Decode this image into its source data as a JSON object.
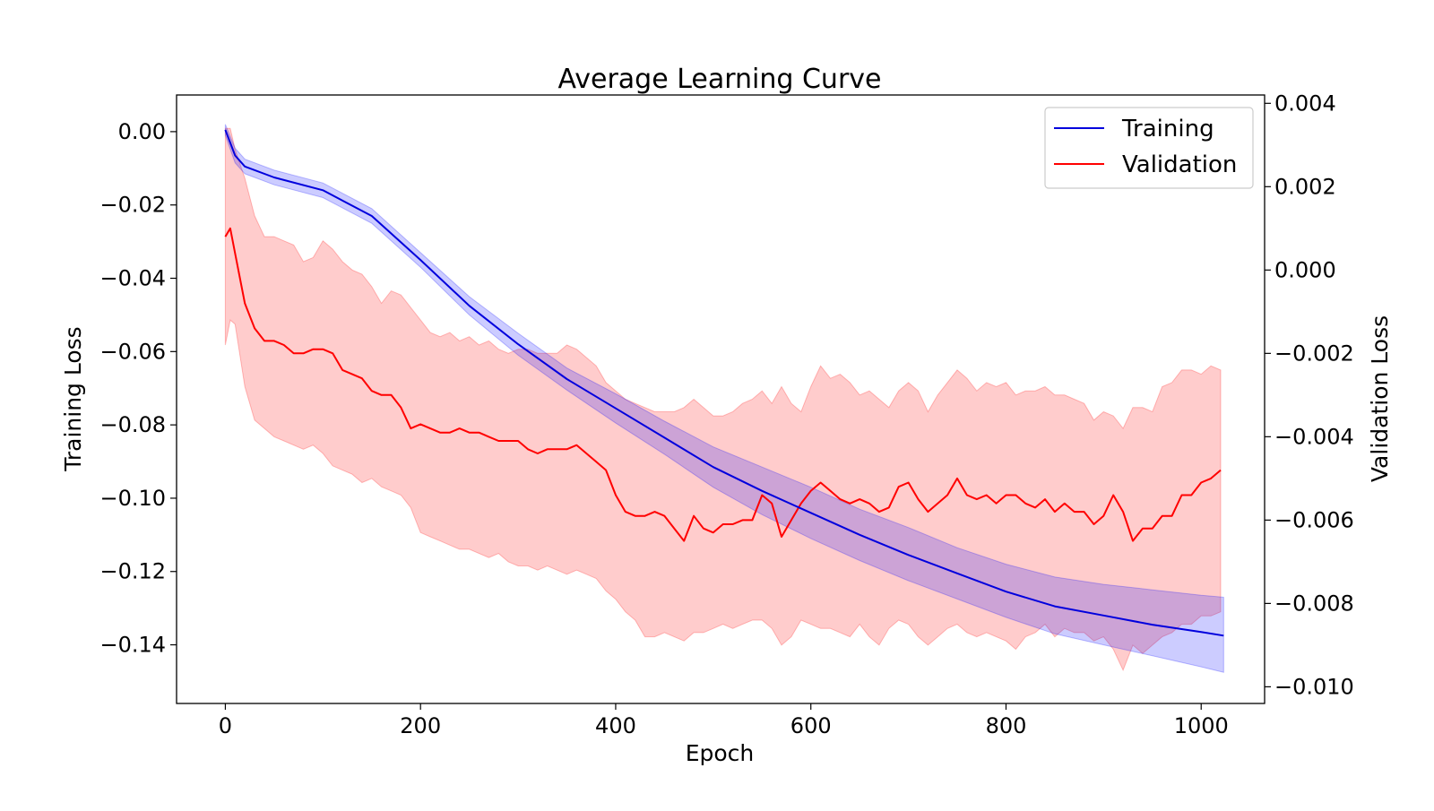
{
  "chart_data": {
    "type": "line",
    "title": "Average Learning Curve",
    "xlabel": "Epoch",
    "ylabel_left": "Training Loss",
    "ylabel_right": "Validation Loss",
    "xlim": [
      -50,
      1065
    ],
    "ylim_left": [
      -0.156,
      0.01
    ],
    "ylim_right": [
      -0.0104,
      0.0042
    ],
    "x_ticks": [
      0,
      200,
      400,
      600,
      800,
      1000
    ],
    "x_tick_labels": [
      "0",
      "200",
      "400",
      "600",
      "800",
      "1000"
    ],
    "y_left_ticks": [
      0.0,
      -0.02,
      -0.04,
      -0.06,
      -0.08,
      -0.1,
      -0.12,
      -0.14
    ],
    "y_left_tick_labels": [
      "0.00",
      "−0.02",
      "−0.04",
      "−0.06",
      "−0.08",
      "−0.10",
      "−0.12",
      "−0.14"
    ],
    "y_right_ticks": [
      0.004,
      0.002,
      0.0,
      -0.002,
      -0.004,
      -0.006,
      -0.008,
      -0.01
    ],
    "y_right_tick_labels": [
      "0.004",
      "0.002",
      "0.000",
      "−0.002",
      "−0.004",
      "−0.006",
      "−0.008",
      "−0.010"
    ],
    "grid": false,
    "legend": {
      "placement": "top-right",
      "entries": [
        "Training",
        "Validation"
      ]
    },
    "series": [
      {
        "name": "Training",
        "axis": "left",
        "color": "#0000dd",
        "band_color": "#0000ff",
        "x": [
          0,
          10,
          20,
          50,
          100,
          150,
          200,
          250,
          300,
          350,
          400,
          450,
          500,
          550,
          600,
          650,
          700,
          750,
          800,
          850,
          900,
          950,
          1000,
          1023
        ],
        "mean": [
          0.0005,
          -0.0065,
          -0.0095,
          -0.0125,
          -0.016,
          -0.023,
          -0.035,
          -0.0475,
          -0.058,
          -0.0675,
          -0.0755,
          -0.0835,
          -0.0915,
          -0.098,
          -0.104,
          -0.11,
          -0.1155,
          -0.1205,
          -0.1255,
          -0.1295,
          -0.132,
          -0.1345,
          -0.1365,
          -0.1375
        ],
        "lower": [
          -0.001,
          -0.0085,
          -0.0115,
          -0.0145,
          -0.018,
          -0.025,
          -0.037,
          -0.05,
          -0.061,
          -0.0705,
          -0.0795,
          -0.088,
          -0.097,
          -0.1045,
          -0.111,
          -0.117,
          -0.1225,
          -0.1275,
          -0.1325,
          -0.137,
          -0.14,
          -0.143,
          -0.146,
          -0.1475
        ],
        "upper": [
          0.002,
          -0.0045,
          -0.0075,
          -0.0105,
          -0.014,
          -0.021,
          -0.033,
          -0.045,
          -0.055,
          -0.0645,
          -0.0715,
          -0.079,
          -0.086,
          -0.0915,
          -0.097,
          -0.103,
          -0.108,
          -0.1135,
          -0.118,
          -0.1215,
          -0.1235,
          -0.125,
          -0.1265,
          -0.127
        ]
      },
      {
        "name": "Validation",
        "axis": "right",
        "color": "#ff0000",
        "band_color": "#ff0000",
        "x": [
          0,
          5,
          10,
          20,
          30,
          40,
          50,
          60,
          70,
          80,
          90,
          100,
          110,
          120,
          130,
          140,
          150,
          160,
          170,
          180,
          190,
          200,
          210,
          220,
          230,
          240,
          250,
          260,
          270,
          280,
          290,
          300,
          310,
          320,
          330,
          340,
          350,
          360,
          370,
          380,
          390,
          400,
          410,
          420,
          430,
          440,
          450,
          460,
          470,
          480,
          490,
          500,
          510,
          520,
          530,
          540,
          550,
          560,
          570,
          580,
          590,
          600,
          610,
          620,
          630,
          640,
          650,
          660,
          670,
          680,
          690,
          700,
          710,
          720,
          730,
          740,
          750,
          760,
          770,
          780,
          790,
          800,
          810,
          820,
          830,
          840,
          850,
          860,
          870,
          880,
          890,
          900,
          910,
          920,
          930,
          940,
          950,
          960,
          970,
          980,
          990,
          1000,
          1010,
          1020
        ],
        "mean": [
          0.0008,
          0.001,
          0.0004,
          -0.0008,
          -0.0014,
          -0.0017,
          -0.0017,
          -0.0018,
          -0.002,
          -0.002,
          -0.0019,
          -0.0019,
          -0.002,
          -0.0024,
          -0.0025,
          -0.0026,
          -0.0029,
          -0.003,
          -0.003,
          -0.0033,
          -0.0038,
          -0.0037,
          -0.0038,
          -0.0039,
          -0.0039,
          -0.0038,
          -0.0039,
          -0.0039,
          -0.004,
          -0.0041,
          -0.0041,
          -0.0041,
          -0.0043,
          -0.0044,
          -0.0043,
          -0.0043,
          -0.0043,
          -0.0042,
          -0.0044,
          -0.0046,
          -0.0048,
          -0.0054,
          -0.0058,
          -0.0059,
          -0.0059,
          -0.0058,
          -0.0059,
          -0.0062,
          -0.0065,
          -0.0059,
          -0.0062,
          -0.0063,
          -0.0061,
          -0.0061,
          -0.006,
          -0.006,
          -0.0054,
          -0.0056,
          -0.0064,
          -0.006,
          -0.0056,
          -0.0053,
          -0.0051,
          -0.0053,
          -0.0055,
          -0.0056,
          -0.0055,
          -0.0056,
          -0.0058,
          -0.0057,
          -0.0052,
          -0.0051,
          -0.0055,
          -0.0058,
          -0.0056,
          -0.0054,
          -0.005,
          -0.0054,
          -0.0055,
          -0.0054,
          -0.0056,
          -0.0054,
          -0.0054,
          -0.0056,
          -0.0057,
          -0.0055,
          -0.0058,
          -0.0056,
          -0.0058,
          -0.0058,
          -0.0061,
          -0.0059,
          -0.0054,
          -0.0058,
          -0.0065,
          -0.0062,
          -0.0062,
          -0.0059,
          -0.0059,
          -0.0054,
          -0.0054,
          -0.0051,
          -0.005,
          -0.0048
        ],
        "lower": [
          -0.0018,
          -0.0012,
          -0.0013,
          -0.0028,
          -0.0036,
          -0.0038,
          -0.004,
          -0.0041,
          -0.0042,
          -0.0043,
          -0.0042,
          -0.0044,
          -0.0047,
          -0.0048,
          -0.0049,
          -0.0051,
          -0.005,
          -0.0052,
          -0.0053,
          -0.0054,
          -0.0057,
          -0.0063,
          -0.0064,
          -0.0065,
          -0.0066,
          -0.0067,
          -0.0067,
          -0.0068,
          -0.0069,
          -0.0068,
          -0.007,
          -0.0071,
          -0.0071,
          -0.0072,
          -0.0071,
          -0.0072,
          -0.0073,
          -0.0072,
          -0.0073,
          -0.0074,
          -0.0077,
          -0.0079,
          -0.0082,
          -0.0084,
          -0.0088,
          -0.0088,
          -0.0087,
          -0.0088,
          -0.0089,
          -0.0087,
          -0.0087,
          -0.0086,
          -0.0085,
          -0.0086,
          -0.0085,
          -0.0084,
          -0.0084,
          -0.0086,
          -0.009,
          -0.0088,
          -0.0084,
          -0.0085,
          -0.0086,
          -0.0086,
          -0.0087,
          -0.0088,
          -0.0085,
          -0.0088,
          -0.009,
          -0.0086,
          -0.0084,
          -0.0085,
          -0.0088,
          -0.009,
          -0.0088,
          -0.0086,
          -0.0085,
          -0.0087,
          -0.0088,
          -0.0087,
          -0.0088,
          -0.0089,
          -0.0091,
          -0.0088,
          -0.0087,
          -0.0085,
          -0.0088,
          -0.0086,
          -0.0087,
          -0.0087,
          -0.0089,
          -0.0088,
          -0.0091,
          -0.0096,
          -0.009,
          -0.0092,
          -0.009,
          -0.0088,
          -0.0087,
          -0.0085,
          -0.0085,
          -0.0083,
          -0.0083,
          -0.0082
        ],
        "upper": [
          0.0034,
          0.0034,
          0.0029,
          0.0022,
          0.0013,
          0.0008,
          0.0008,
          0.0007,
          0.0006,
          0.0002,
          0.0003,
          0.0007,
          0.0005,
          0.0002,
          0.0,
          -0.0001,
          -0.0004,
          -0.0008,
          -0.0005,
          -0.0006,
          -0.0009,
          -0.0012,
          -0.0015,
          -0.0016,
          -0.0015,
          -0.0017,
          -0.0016,
          -0.0018,
          -0.0017,
          -0.0019,
          -0.002,
          -0.0019,
          -0.0019,
          -0.002,
          -0.002,
          -0.002,
          -0.0018,
          -0.0019,
          -0.0021,
          -0.0023,
          -0.0027,
          -0.0029,
          -0.0031,
          -0.0032,
          -0.0033,
          -0.0034,
          -0.0034,
          -0.0034,
          -0.0033,
          -0.0031,
          -0.0033,
          -0.0035,
          -0.0035,
          -0.0034,
          -0.0032,
          -0.0031,
          -0.0029,
          -0.0032,
          -0.0028,
          -0.0032,
          -0.0034,
          -0.0028,
          -0.0023,
          -0.0026,
          -0.0025,
          -0.0027,
          -0.003,
          -0.0029,
          -0.0031,
          -0.0033,
          -0.0029,
          -0.0027,
          -0.0029,
          -0.0034,
          -0.003,
          -0.0027,
          -0.0024,
          -0.0026,
          -0.0029,
          -0.0027,
          -0.0028,
          -0.0027,
          -0.003,
          -0.0029,
          -0.0029,
          -0.0028,
          -0.003,
          -0.003,
          -0.0031,
          -0.0032,
          -0.0036,
          -0.0034,
          -0.0035,
          -0.0038,
          -0.0033,
          -0.0033,
          -0.0034,
          -0.0028,
          -0.0027,
          -0.0024,
          -0.0024,
          -0.0025,
          -0.0023,
          -0.0024
        ]
      }
    ]
  }
}
